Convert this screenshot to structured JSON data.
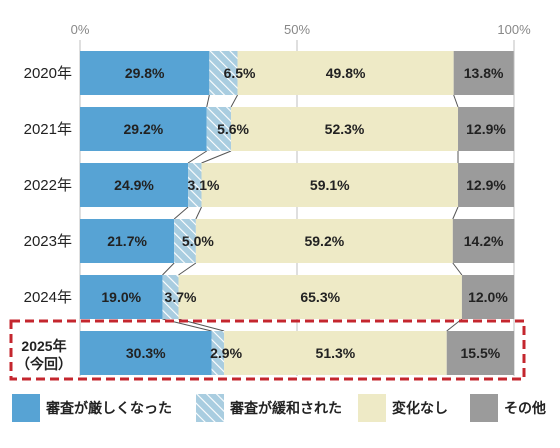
{
  "chart_data": {
    "type": "bar",
    "orientation": "horizontal",
    "stacked": true,
    "x_tick_labels": [
      "0%",
      "50%",
      "100%"
    ],
    "xlim": [
      0,
      100
    ],
    "grid": true,
    "legend_position": "bottom",
    "categories": [
      "2020年",
      "2021年",
      "2022年",
      "2023年",
      "2024年",
      "2025年\n（今回）"
    ],
    "highlighted_category": "2025年\n（今回）",
    "series": [
      {
        "name": "審査が厳しくなった",
        "color": "#57a3d4",
        "pattern": "solid",
        "values": [
          29.8,
          29.2,
          24.9,
          21.7,
          19.0,
          30.3
        ],
        "labels": [
          "29.8%",
          "29.2%",
          "24.9%",
          "21.7%",
          "19.0%",
          "30.3%"
        ]
      },
      {
        "name": "審査が緩和された",
        "color": "#a9cde0",
        "pattern": "hatched",
        "values": [
          6.5,
          5.6,
          3.1,
          5.0,
          3.7,
          2.9
        ],
        "labels": [
          "6.5%",
          "5.6%",
          "3.1%",
          "5.0%",
          "3.7%",
          "2.9%"
        ]
      },
      {
        "name": "変化なし",
        "color": "#eeeac6",
        "pattern": "solid",
        "values": [
          49.8,
          52.3,
          59.1,
          59.2,
          65.3,
          51.3
        ],
        "labels": [
          "49.8%",
          "52.3%",
          "59.1%",
          "59.2%",
          "65.3%",
          "51.3%"
        ]
      },
      {
        "name": "その他",
        "color": "#9b9b9b",
        "pattern": "solid",
        "values": [
          13.8,
          12.9,
          12.9,
          14.2,
          12.0,
          15.5
        ],
        "labels": [
          "13.8%",
          "12.9%",
          "12.9%",
          "14.2%",
          "12.0%",
          "15.5%"
        ]
      }
    ]
  },
  "colors": {
    "highlight_box": "#c4262e",
    "grid": "#bfbfbf",
    "connector": "#555555"
  }
}
